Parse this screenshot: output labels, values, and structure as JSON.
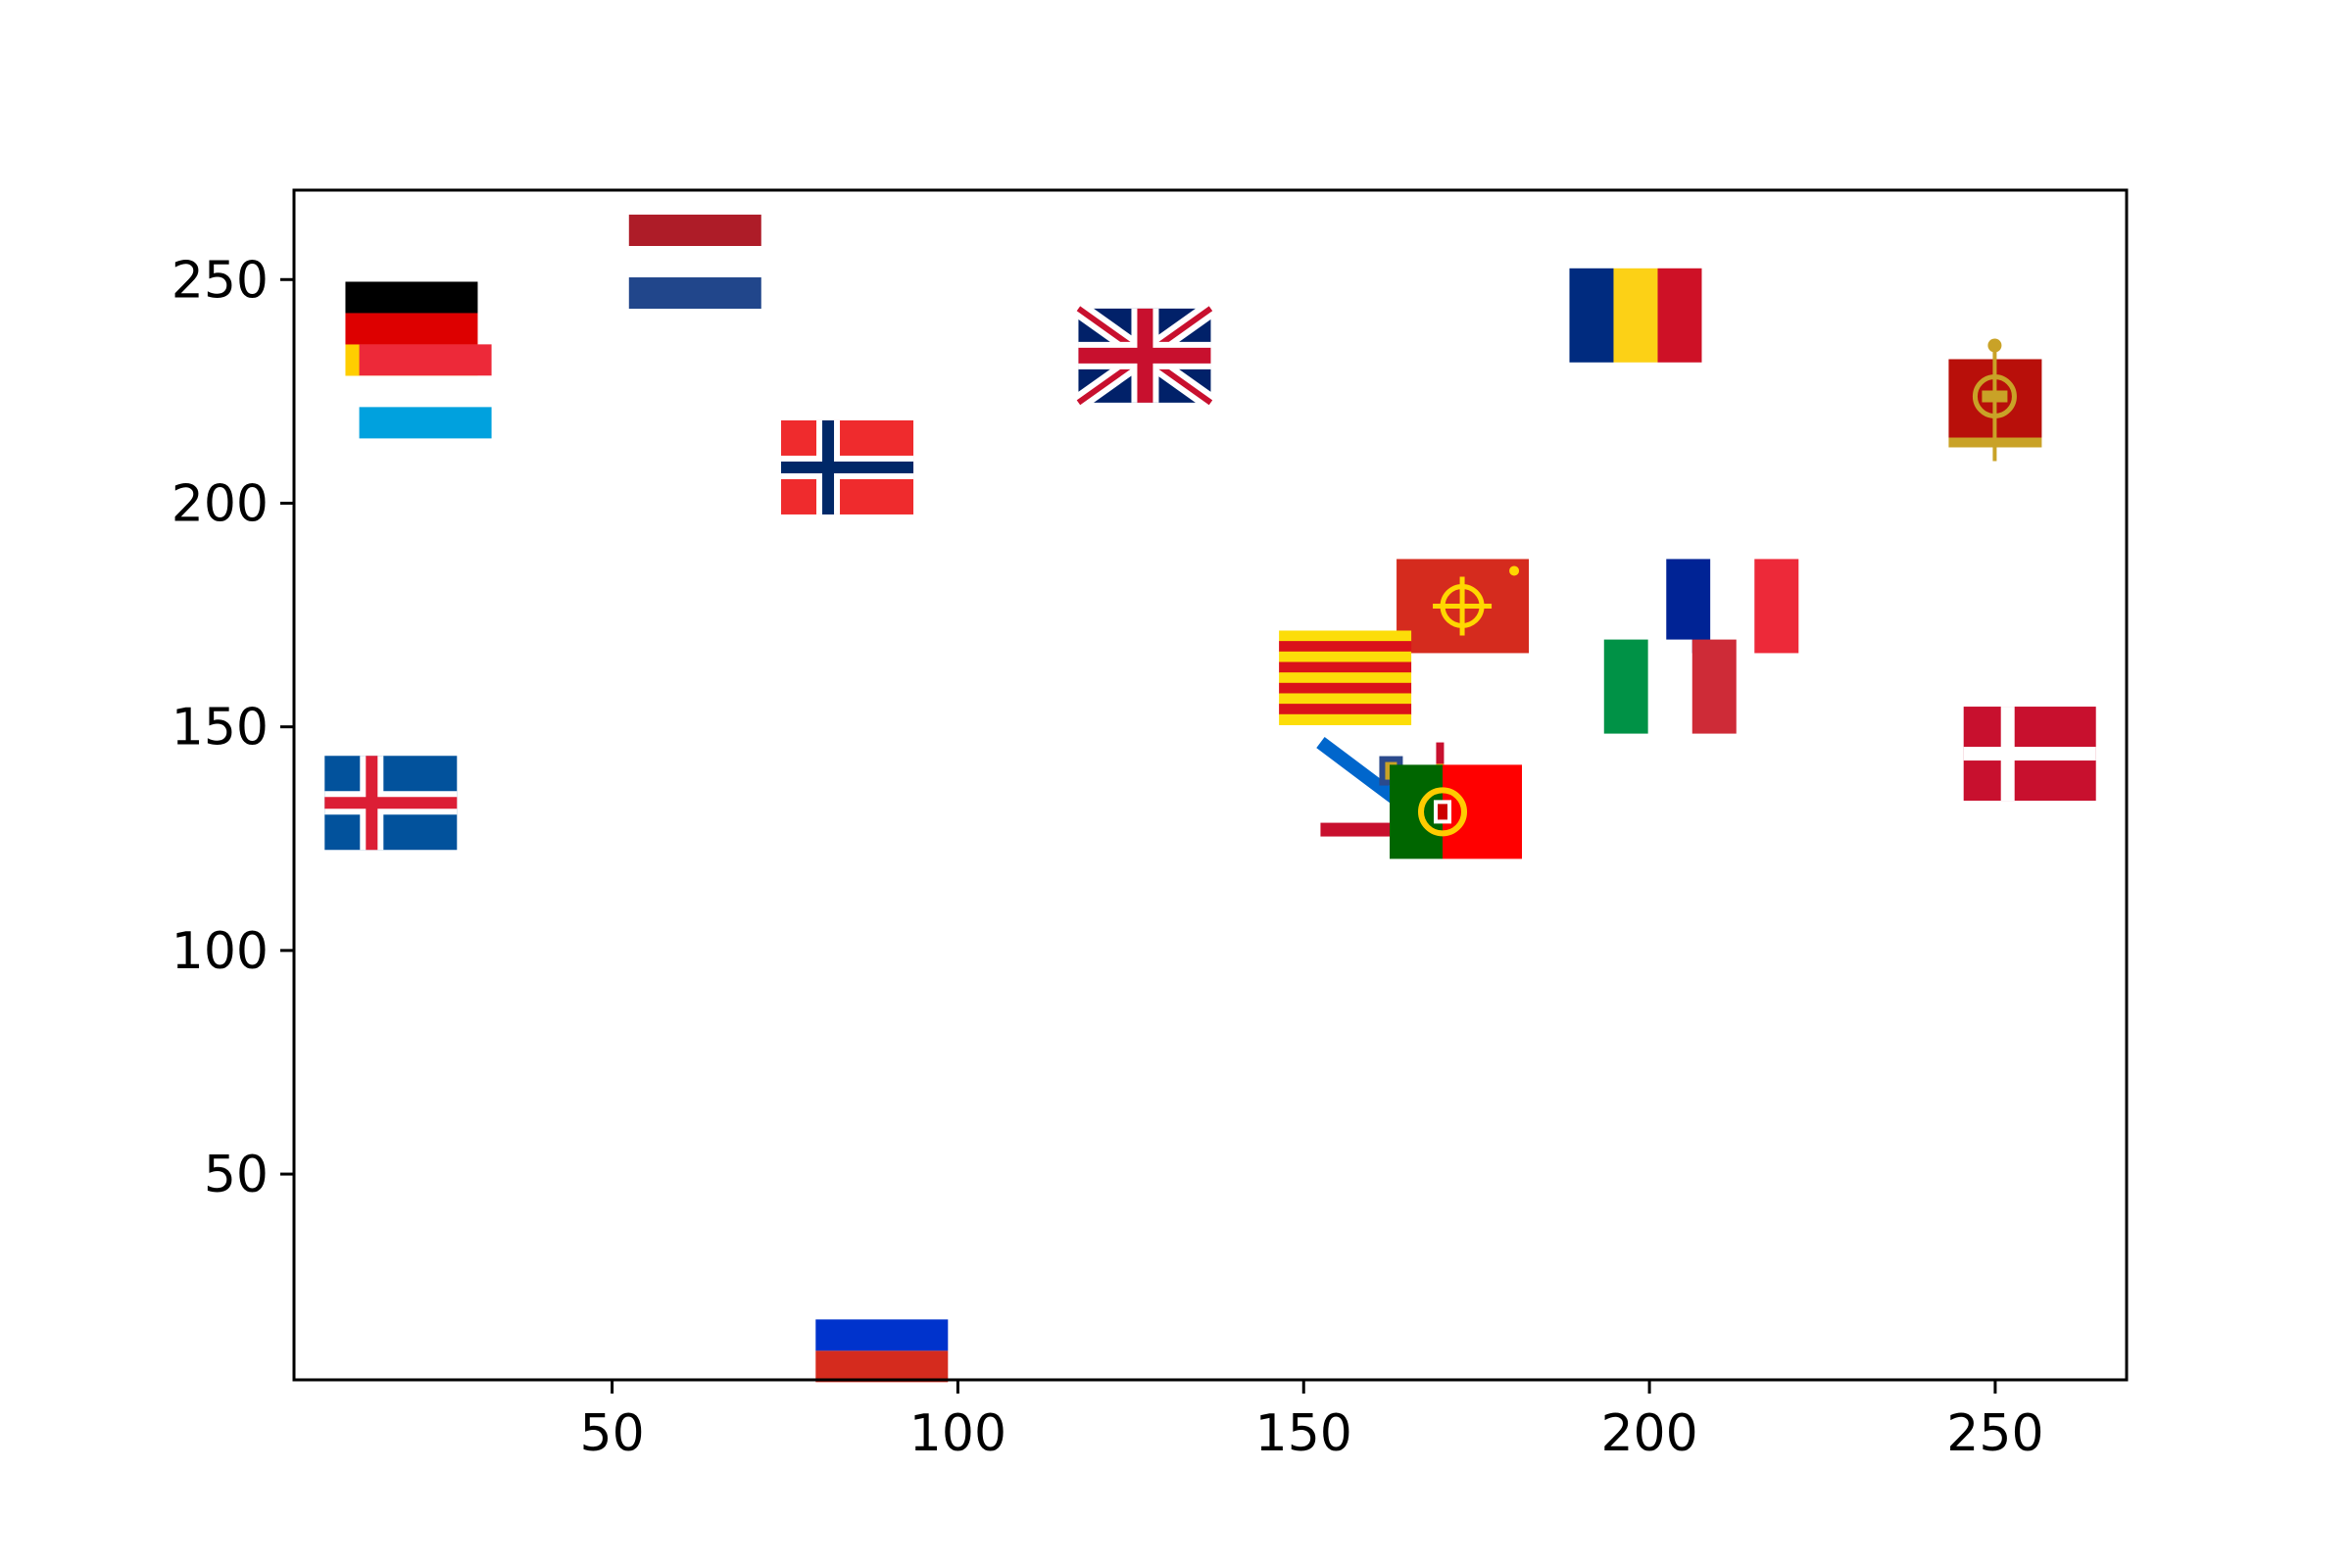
{
  "chart_data": {
    "type": "scatter",
    "marker_style": "flag-image",
    "title": "",
    "xlabel": "",
    "ylabel": "",
    "xlim": [
      4,
      269
    ],
    "ylim": [
      4,
      270
    ],
    "xticks": [
      50,
      100,
      150,
      200,
      250
    ],
    "yticks": [
      50,
      100,
      150,
      200,
      250
    ],
    "xtick_labels": [
      "50",
      "100",
      "150",
      "200",
      "250"
    ],
    "ytick_labels": [
      "50",
      "100",
      "150",
      "200",
      "250"
    ],
    "grid": false,
    "points": [
      {
        "name": "germany",
        "x": 21,
        "y": 239
      },
      {
        "name": "luxembourg",
        "x": 23,
        "y": 225
      },
      {
        "name": "netherlands",
        "x": 62,
        "y": 254
      },
      {
        "name": "norway",
        "x": 84,
        "y": 208
      },
      {
        "name": "iceland",
        "x": 18,
        "y": 133
      },
      {
        "name": "russia",
        "x": 89,
        "y": 14
      },
      {
        "name": "united-kingdom",
        "x": 127,
        "y": 233
      },
      {
        "name": "romania",
        "x": 198,
        "y": 242
      },
      {
        "name": "roman-vexillum",
        "x": 250,
        "y": 223
      },
      {
        "name": "occitania",
        "x": 173,
        "y": 177
      },
      {
        "name": "catalonia",
        "x": 156,
        "y": 161
      },
      {
        "name": "asturias",
        "x": 162,
        "y": 136
      },
      {
        "name": "portugal",
        "x": 172,
        "y": 131
      },
      {
        "name": "france",
        "x": 212,
        "y": 177
      },
      {
        "name": "italy",
        "x": 203,
        "y": 159
      },
      {
        "name": "denmark",
        "x": 255,
        "y": 144
      }
    ]
  }
}
